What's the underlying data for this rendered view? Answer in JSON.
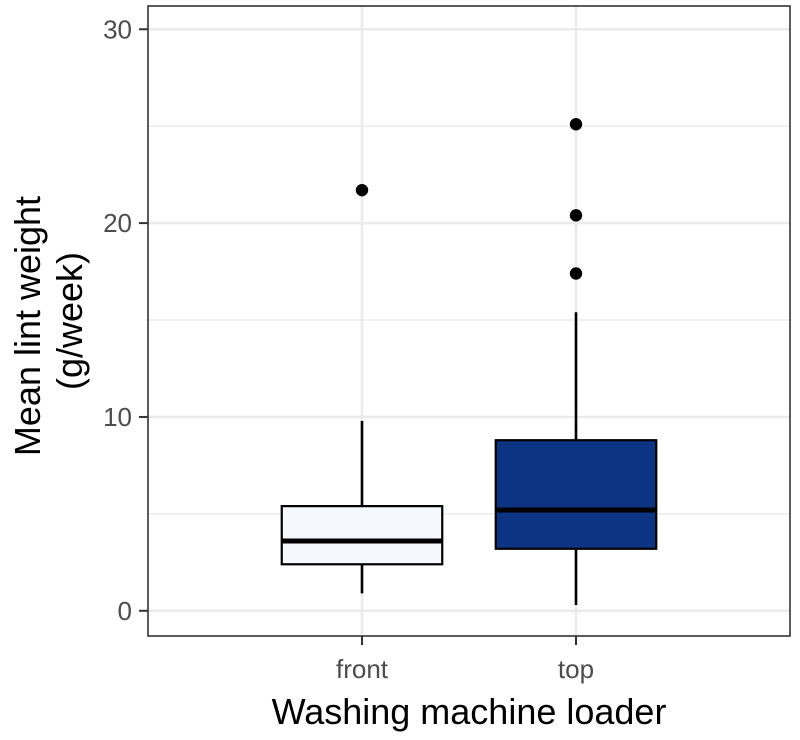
{
  "chart_data": {
    "type": "box",
    "title": "",
    "xlabel": "Washing machine loader",
    "ylabel_lines": [
      "Mean lint weight",
      "(g/week)"
    ],
    "ylim": [
      -1.3,
      31.2
    ],
    "y_ticks": [
      0,
      10,
      20,
      30
    ],
    "y_minor_gridlines": [
      5,
      15,
      25
    ],
    "categories": [
      "front",
      "top"
    ],
    "boxes": [
      {
        "category": "front",
        "fill": "#f5f9fd",
        "whisker_low": 0.9,
        "q1": 2.4,
        "median": 3.6,
        "q3": 5.4,
        "whisker_high": 9.8,
        "outliers": [
          21.7
        ]
      },
      {
        "category": "top",
        "fill": "#0c3483",
        "whisker_low": 0.3,
        "q1": 3.2,
        "median": 5.2,
        "q3": 8.8,
        "whisker_high": 15.4,
        "outliers": [
          17.4,
          20.4,
          25.1
        ]
      }
    ],
    "grid": true,
    "legend": "none",
    "colors": {
      "outline": "#000000",
      "grid": "#ebebeb",
      "tick_text": "#4d4d4d"
    }
  }
}
